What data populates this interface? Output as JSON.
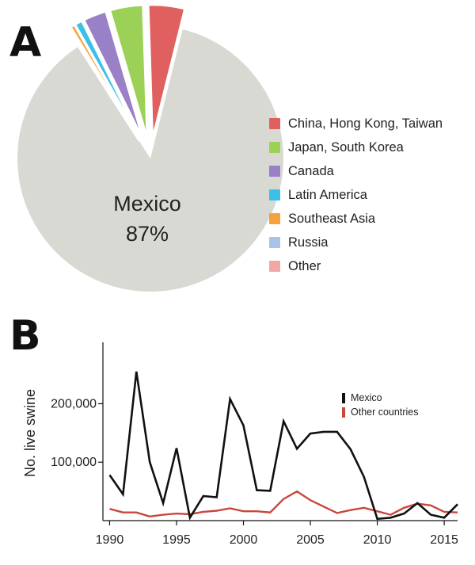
{
  "chart_data": [
    {
      "type": "pie",
      "panel_label": "A",
      "slices": [
        {
          "label": "Mexico",
          "value": 87,
          "value_text": "87%",
          "color": "#d9d9d3",
          "exploded": false
        },
        {
          "label": "China, Hong Kong, Taiwan",
          "value": 4.4,
          "color": "#e0605f",
          "exploded": true
        },
        {
          "label": "Japan, South Korea",
          "value": 4.0,
          "color": "#9bd157",
          "exploded": true
        },
        {
          "label": "Canada",
          "value": 2.8,
          "color": "#9a80c7",
          "exploded": true
        },
        {
          "label": "Latin America",
          "value": 0.9,
          "color": "#3cc0ea",
          "exploded": true
        },
        {
          "label": "Southeast Asia",
          "value": 0.5,
          "color": "#f5a13c",
          "exploded": true
        },
        {
          "label": "Russia",
          "value": 0.2,
          "color": "#a9c2e8",
          "exploded": true
        },
        {
          "label": "Other",
          "value": 0.2,
          "color": "#f2a6a6",
          "exploded": true
        }
      ],
      "legend_placement": "right"
    },
    {
      "type": "line",
      "panel_label": "B",
      "ylabel": "No. live swine",
      "xlim": [
        1989.5,
        2016
      ],
      "ylim": [
        0,
        305000
      ],
      "xticks": [
        1990,
        1995,
        2000,
        2005,
        2010,
        2015
      ],
      "xtick_labels": [
        "1990",
        "1995",
        "2000",
        "2005",
        "2010",
        "2015"
      ],
      "yticks": [
        100000,
        200000
      ],
      "ytick_labels": [
        "100,000",
        "200,000"
      ],
      "legend_placement": "right",
      "x": [
        1990,
        1991,
        1992,
        1993,
        1994,
        1995,
        1996,
        1997,
        1998,
        1999,
        2000,
        2001,
        2002,
        2003,
        2004,
        2005,
        2006,
        2007,
        2008,
        2009,
        2010,
        2011,
        2012,
        2013,
        2014,
        2015,
        2016
      ],
      "series": [
        {
          "name": "Mexico",
          "color": "#111111",
          "values": [
            78000,
            45000,
            255000,
            100000,
            30000,
            124000,
            5000,
            42000,
            40000,
            208000,
            163000,
            52000,
            51000,
            170000,
            123000,
            149000,
            152000,
            152000,
            122000,
            75000,
            3000,
            5000,
            12000,
            30000,
            10000,
            5000,
            28000
          ]
        },
        {
          "name": "Other countries",
          "color": "#c9473d",
          "values": [
            20000,
            14000,
            14000,
            7000,
            10000,
            12000,
            11000,
            15000,
            17000,
            21000,
            16000,
            16000,
            14000,
            37000,
            50000,
            35000,
            24000,
            13000,
            18000,
            22000,
            16000,
            10000,
            22000,
            29000,
            26000,
            15000,
            14000
          ]
        }
      ]
    }
  ]
}
